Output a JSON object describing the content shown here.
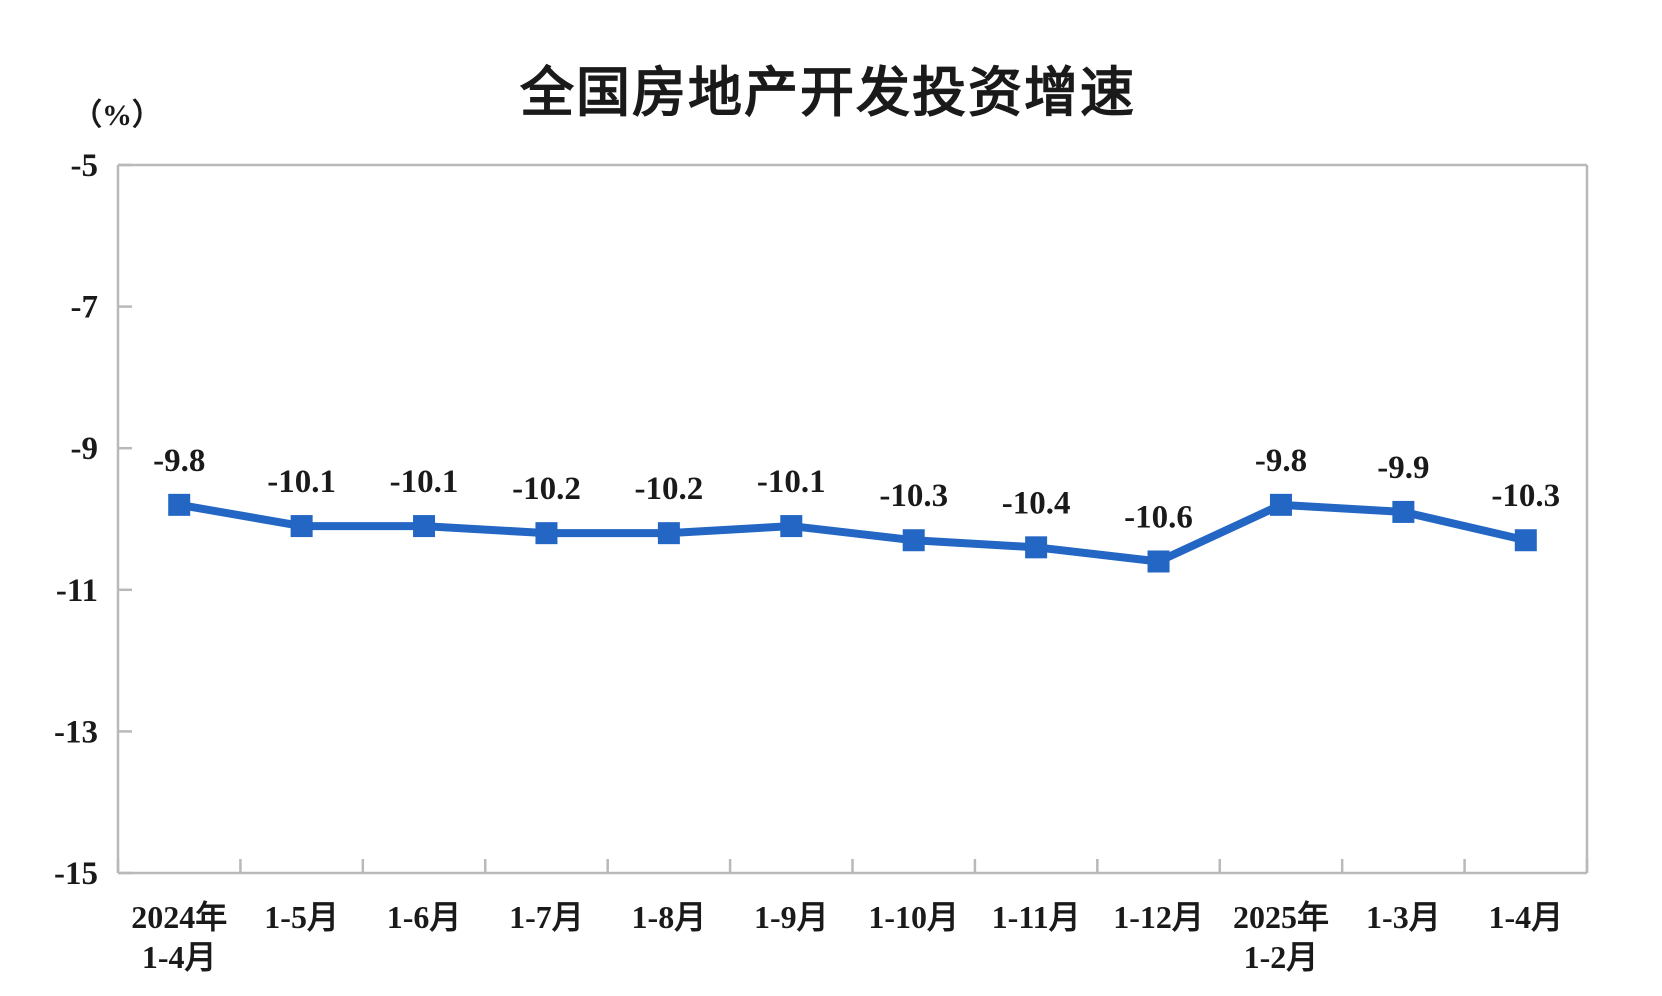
{
  "chart_data": {
    "type": "line",
    "title": "全国房地产开发投资增速",
    "unit": "（%）",
    "categories": [
      "2024年\n1-4月",
      "1-5月",
      "1-6月",
      "1-7月",
      "1-8月",
      "1-9月",
      "1-10月",
      "1-11月",
      "1-12月",
      "2025年\n1-2月",
      "1-3月",
      "1-4月"
    ],
    "values": [
      -9.8,
      -10.1,
      -10.1,
      -10.2,
      -10.2,
      -10.1,
      -10.3,
      -10.4,
      -10.6,
      -9.8,
      -9.9,
      -10.3
    ],
    "data_labels": [
      "-9.8",
      "-10.1",
      "-10.1",
      "-10.2",
      "-10.2",
      "-10.1",
      "-10.3",
      "-10.4",
      "-10.6",
      "-9.8",
      "-9.9",
      "-10.3"
    ],
    "xlabel": "",
    "ylabel": "（%）",
    "ylim": [
      -15,
      -5
    ],
    "y_ticks": [
      -5,
      -7,
      -9,
      -11,
      -13,
      -15
    ],
    "grid": false,
    "legend": "none",
    "marker": "square",
    "line_color": "#2366c4",
    "text_color": "#1a1a1a",
    "axis_color": "#b9b9b9"
  }
}
